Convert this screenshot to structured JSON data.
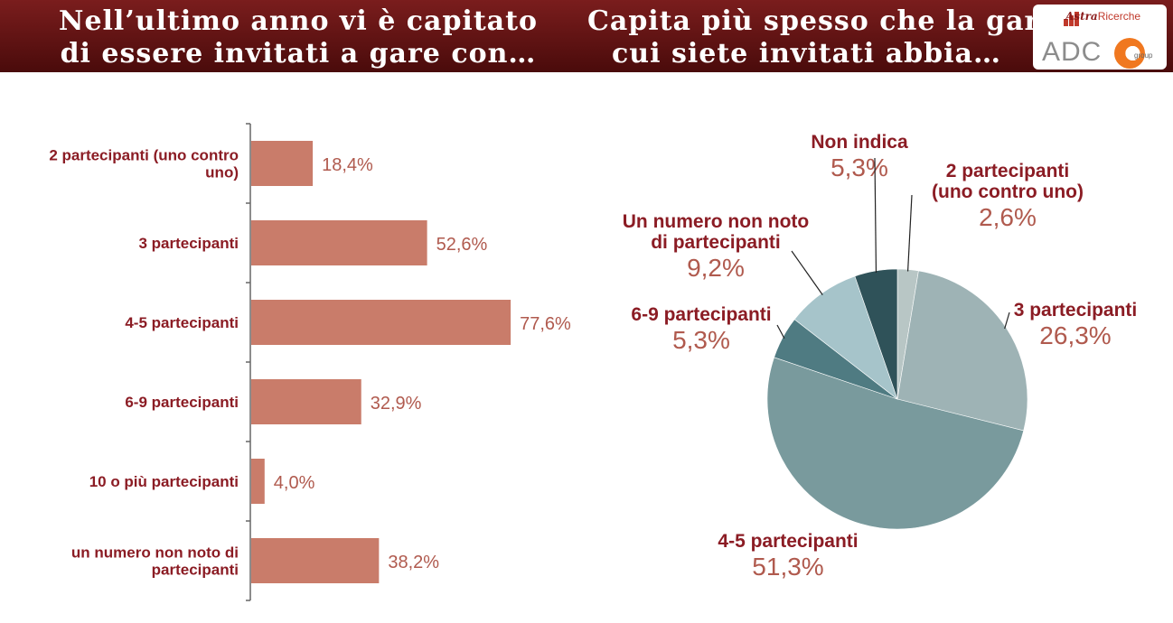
{
  "header": {
    "left_title_line1": "Nell’ultimo anno vi è capitato",
    "left_title_line2": "di essere invitati a gare con…",
    "right_title_line1": "Capita più spesso che la gara a",
    "right_title_line2": "cui siete invitati abbia…"
  },
  "logo": {
    "brand_top": "Astra",
    "brand_top_suffix": "Ricerche",
    "brand_main": "ADC",
    "brand_sub": "group"
  },
  "colors": {
    "header": "#6b1515",
    "bar": "#c97c6a",
    "label_dark": "#8b1c24",
    "label_value": "#b05a4e",
    "axis": "#666666"
  },
  "chart_data": [
    {
      "type": "bar",
      "orientation": "horizontal",
      "title": "Nell’ultimo anno vi è capitato di essere invitati a gare con…",
      "categories": [
        [
          "2 partecipanti (uno contro",
          "uno)"
        ],
        [
          "3 partecipanti"
        ],
        [
          "4-5 partecipanti"
        ],
        [
          "6-9 partecipanti"
        ],
        [
          "10 o più partecipanti"
        ],
        [
          "un numero non noto di",
          "partecipanti"
        ]
      ],
      "values": [
        18.4,
        52.6,
        77.6,
        32.9,
        4.0,
        38.2
      ],
      "value_labels": [
        "18,4%",
        "52,6%",
        "77,6%",
        "32,9%",
        "4,0%",
        "38,2%"
      ],
      "xlim": [
        0,
        100
      ]
    },
    {
      "type": "pie",
      "title": "Capita più spesso che la gara a cui siete invitati abbia…",
      "slices": [
        {
          "name": [
            "2 partecipanti",
            "(uno contro uno)"
          ],
          "value": 2.6,
          "label": "2,6%",
          "color": "#b8c6c5"
        },
        {
          "name": [
            "3 partecipanti"
          ],
          "value": 26.3,
          "label": "26,3%",
          "color": "#9eb3b5"
        },
        {
          "name": [
            "4-5 partecipanti"
          ],
          "value": 51.3,
          "label": "51,3%",
          "color": "#799a9d"
        },
        {
          "name": [
            "6-9 partecipanti"
          ],
          "value": 5.3,
          "label": "5,3%",
          "color": "#4f7b82"
        },
        {
          "name": [
            "Un numero non noto",
            "di partecipanti"
          ],
          "value": 9.2,
          "label": "9,2%",
          "color": "#a6c4ca"
        },
        {
          "name": [
            "Non indica"
          ],
          "value": 5.3,
          "label": "5,3%",
          "color": "#2f5259"
        }
      ]
    }
  ]
}
